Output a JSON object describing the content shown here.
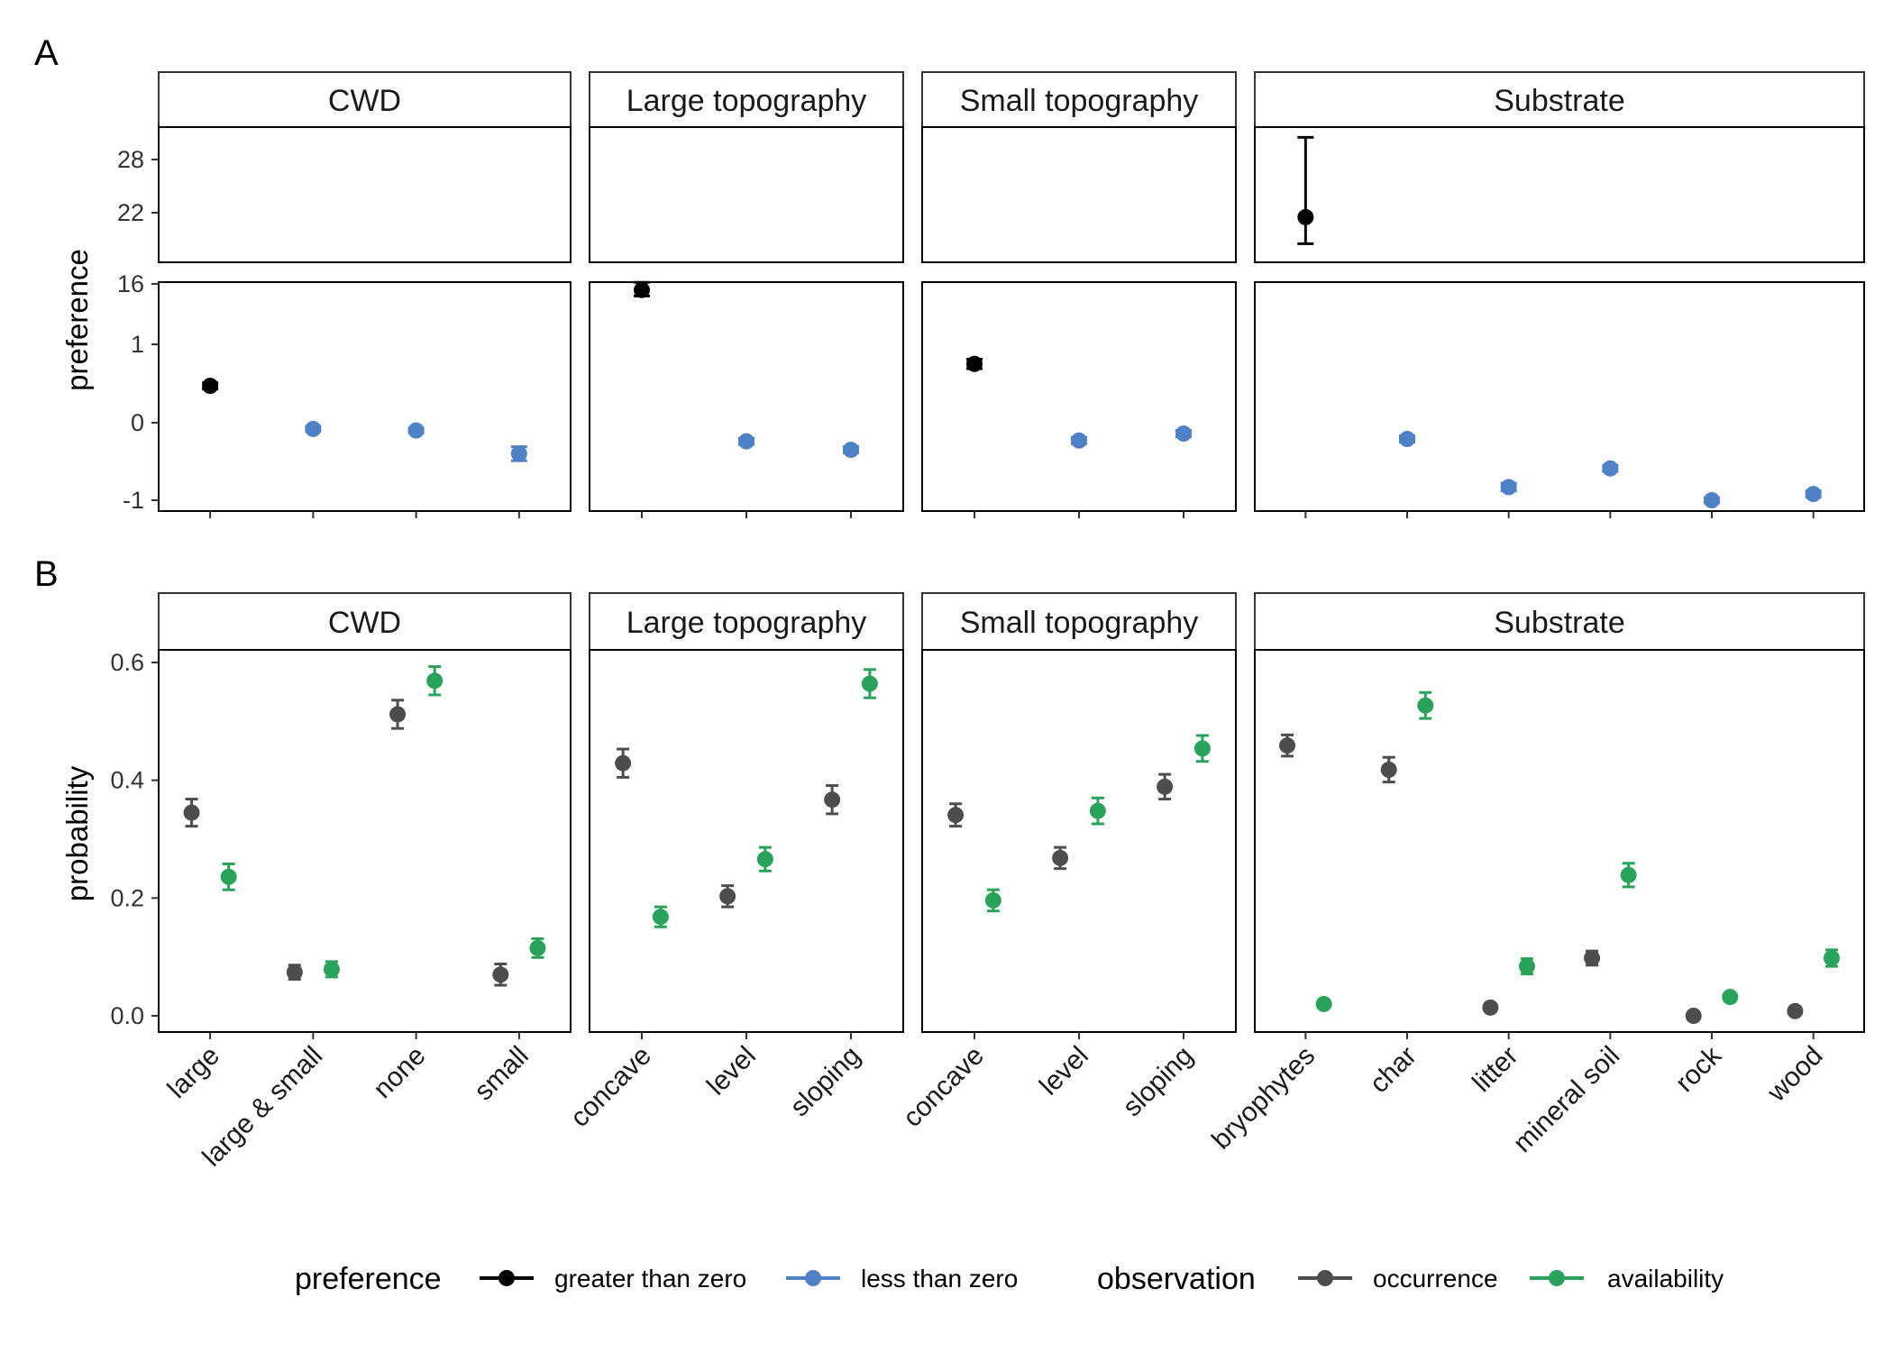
{
  "panel_labels": [
    "A",
    "B"
  ],
  "colors": {
    "greater_than_zero": "#000000",
    "less_than_zero": "#4f81c7",
    "occurrence": "#4d4d4d",
    "availability": "#2aa35a"
  },
  "legend": {
    "preference": {
      "title": "preference",
      "items": [
        {
          "label": "greater than zero",
          "color": "#000000"
        },
        {
          "label": "less than zero",
          "color": "#4f81c7"
        }
      ]
    },
    "observation": {
      "title": "observation",
      "items": [
        {
          "label": "occurrence",
          "color": "#4d4d4d"
        },
        {
          "label": "availability",
          "color": "#2aa35a"
        }
      ]
    }
  },
  "chart_data": [
    {
      "panel": "A",
      "type": "scatter",
      "ylabel": "preference",
      "broken_y_axis": true,
      "y_upper_ticks": [
        "22",
        "28"
      ],
      "y_lower_ticks": [
        "-1",
        "0",
        "1",
        "16"
      ],
      "facets": [
        {
          "name": "CWD",
          "categories": [
            "large",
            "large & small",
            "none",
            "small"
          ],
          "points": [
            {
              "category": "large",
              "y": 0.47,
              "lo": 0.43,
              "hi": 0.51,
              "group": "greater than zero"
            },
            {
              "category": "large & small",
              "y": -0.08,
              "lo": -0.11,
              "hi": -0.05,
              "group": "less than zero"
            },
            {
              "category": "none",
              "y": -0.1,
              "lo": -0.13,
              "hi": -0.07,
              "group": "less than zero"
            },
            {
              "category": "small",
              "y": -0.4,
              "lo": -0.49,
              "hi": -0.31,
              "group": "less than zero"
            }
          ]
        },
        {
          "name": "Large topography",
          "categories": [
            "concave",
            "level",
            "sloping"
          ],
          "points": [
            {
              "category": "concave",
              "y": 14.5,
              "lo": 13.0,
              "hi": 16.4,
              "group": "greater than zero"
            },
            {
              "category": "level",
              "y": -0.24,
              "lo": -0.28,
              "hi": -0.2,
              "group": "less than zero"
            },
            {
              "category": "sloping",
              "y": -0.35,
              "lo": -0.39,
              "hi": -0.31,
              "group": "less than zero"
            }
          ]
        },
        {
          "name": "Small topography",
          "categories": [
            "concave",
            "level",
            "sloping"
          ],
          "points": [
            {
              "category": "concave",
              "y": 0.75,
              "lo": 0.69,
              "hi": 0.81,
              "group": "greater than zero"
            },
            {
              "category": "level",
              "y": -0.23,
              "lo": -0.27,
              "hi": -0.19,
              "group": "less than zero"
            },
            {
              "category": "sloping",
              "y": -0.14,
              "lo": -0.18,
              "hi": -0.1,
              "group": "less than zero"
            }
          ]
        },
        {
          "name": "Substrate",
          "categories": [
            "bryophytes",
            "char",
            "litter",
            "mineral soil",
            "rock",
            "wood"
          ],
          "points": [
            {
              "category": "bryophytes",
              "y": 21.5,
              "lo": 18.5,
              "hi": 30.5,
              "group": "greater than zero"
            },
            {
              "category": "char",
              "y": -0.21,
              "lo": -0.25,
              "hi": -0.17,
              "group": "less than zero"
            },
            {
              "category": "litter",
              "y": -0.83,
              "lo": -0.88,
              "hi": -0.78,
              "group": "less than zero"
            },
            {
              "category": "mineral soil",
              "y": -0.59,
              "lo": -0.63,
              "hi": -0.55,
              "group": "less than zero"
            },
            {
              "category": "rock",
              "y": -1.0,
              "lo": -1.03,
              "hi": -0.97,
              "group": "less than zero"
            },
            {
              "category": "wood",
              "y": -0.92,
              "lo": -0.96,
              "hi": -0.88,
              "group": "less than zero"
            }
          ]
        }
      ]
    },
    {
      "panel": "B",
      "type": "scatter",
      "ylabel": "probability",
      "ylim": [
        -0.02,
        0.72
      ],
      "y_ticks": [
        "0.0",
        "0.2",
        "0.4",
        "0.6"
      ],
      "series": [
        "occurrence",
        "availability"
      ],
      "facets": [
        {
          "name": "CWD",
          "categories": [
            "large",
            "large & small",
            "none",
            "small"
          ],
          "occurrence": [
            {
              "y": 0.345,
              "lo": 0.322,
              "hi": 0.368
            },
            {
              "y": 0.074,
              "lo": 0.062,
              "hi": 0.086
            },
            {
              "y": 0.512,
              "lo": 0.488,
              "hi": 0.536
            },
            {
              "y": 0.07,
              "lo": 0.052,
              "hi": 0.088
            }
          ],
          "availability": [
            {
              "y": 0.236,
              "lo": 0.214,
              "hi": 0.258
            },
            {
              "y": 0.079,
              "lo": 0.066,
              "hi": 0.092
            },
            {
              "y": 0.569,
              "lo": 0.545,
              "hi": 0.593
            },
            {
              "y": 0.115,
              "lo": 0.099,
              "hi": 0.131
            }
          ]
        },
        {
          "name": "Large topography",
          "categories": [
            "concave",
            "level",
            "sloping"
          ],
          "occurrence": [
            {
              "y": 0.429,
              "lo": 0.405,
              "hi": 0.453
            },
            {
              "y": 0.203,
              "lo": 0.185,
              "hi": 0.221
            },
            {
              "y": 0.367,
              "lo": 0.343,
              "hi": 0.391
            }
          ],
          "availability": [
            {
              "y": 0.168,
              "lo": 0.151,
              "hi": 0.185
            },
            {
              "y": 0.266,
              "lo": 0.246,
              "hi": 0.286
            },
            {
              "y": 0.564,
              "lo": 0.54,
              "hi": 0.588
            }
          ]
        },
        {
          "name": "Small topography",
          "categories": [
            "concave",
            "level",
            "sloping"
          ],
          "occurrence": [
            {
              "y": 0.341,
              "lo": 0.322,
              "hi": 0.36
            },
            {
              "y": 0.268,
              "lo": 0.25,
              "hi": 0.286
            },
            {
              "y": 0.389,
              "lo": 0.368,
              "hi": 0.41
            }
          ],
          "availability": [
            {
              "y": 0.196,
              "lo": 0.178,
              "hi": 0.214
            },
            {
              "y": 0.348,
              "lo": 0.326,
              "hi": 0.37
            },
            {
              "y": 0.454,
              "lo": 0.432,
              "hi": 0.476
            }
          ]
        },
        {
          "name": "Substrate",
          "categories": [
            "bryophytes",
            "char",
            "litter",
            "mineral soil",
            "rock",
            "wood"
          ],
          "occurrence": [
            {
              "y": 0.459,
              "lo": 0.441,
              "hi": 0.477
            },
            {
              "y": 0.418,
              "lo": 0.397,
              "hi": 0.439
            },
            {
              "y": 0.014,
              "lo": 0.008,
              "hi": 0.02
            },
            {
              "y": 0.098,
              "lo": 0.086,
              "hi": 0.11
            },
            {
              "y": 0.0,
              "lo": -0.003,
              "hi": 0.003
            },
            {
              "y": 0.008,
              "lo": 0.003,
              "hi": 0.013
            }
          ],
          "availability": [
            {
              "y": 0.02,
              "lo": 0.014,
              "hi": 0.026
            },
            {
              "y": 0.527,
              "lo": 0.505,
              "hi": 0.549
            },
            {
              "y": 0.084,
              "lo": 0.071,
              "hi": 0.097
            },
            {
              "y": 0.239,
              "lo": 0.219,
              "hi": 0.259
            },
            {
              "y": 0.032,
              "lo": 0.025,
              "hi": 0.039
            },
            {
              "y": 0.098,
              "lo": 0.084,
              "hi": 0.112
            }
          ]
        }
      ]
    }
  ]
}
